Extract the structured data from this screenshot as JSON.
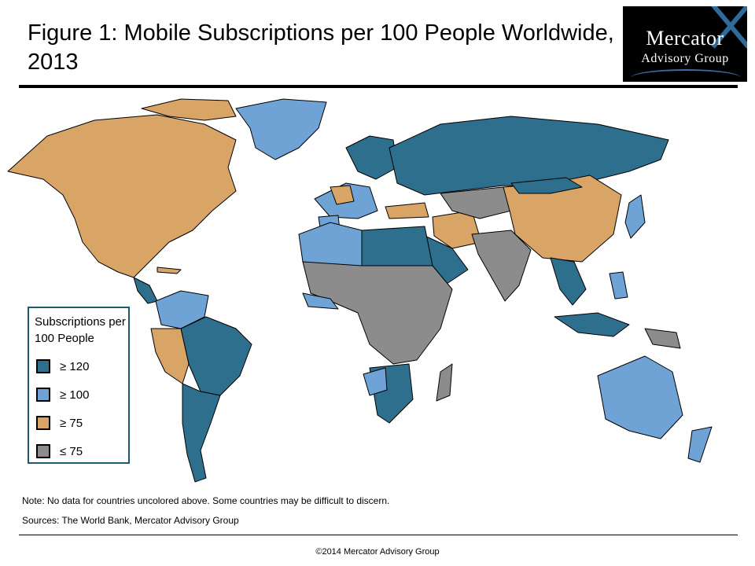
{
  "header": {
    "title": "Figure 1: Mobile Subscriptions per 100 People Worldwide, 2013"
  },
  "logo": {
    "name": "Mercator",
    "subtitle": "Advisory Group"
  },
  "colors": {
    "tier_120": "#2e6f8e",
    "tier_100": "#6fa3d6",
    "tier_75": "#d9a566",
    "tier_below": "#8c8c8c",
    "border": "#000000"
  },
  "legend": {
    "title": "Subscriptions per 100 People",
    "items": [
      {
        "label": "≥ 120",
        "color_key": "tier_120"
      },
      {
        "label": "≥ 100",
        "color_key": "tier_100"
      },
      {
        "label": "≥ 75",
        "color_key": "tier_75"
      },
      {
        "label": "≤ 75",
        "color_key": "tier_below"
      }
    ]
  },
  "footer": {
    "note": "Note: No data for countries uncolored above.  Some countries may be difficult to discern.",
    "sources": "Sources: The World Bank, Mercator Advisory Group",
    "copyright": "©2014 Mercator Advisory Group"
  }
}
